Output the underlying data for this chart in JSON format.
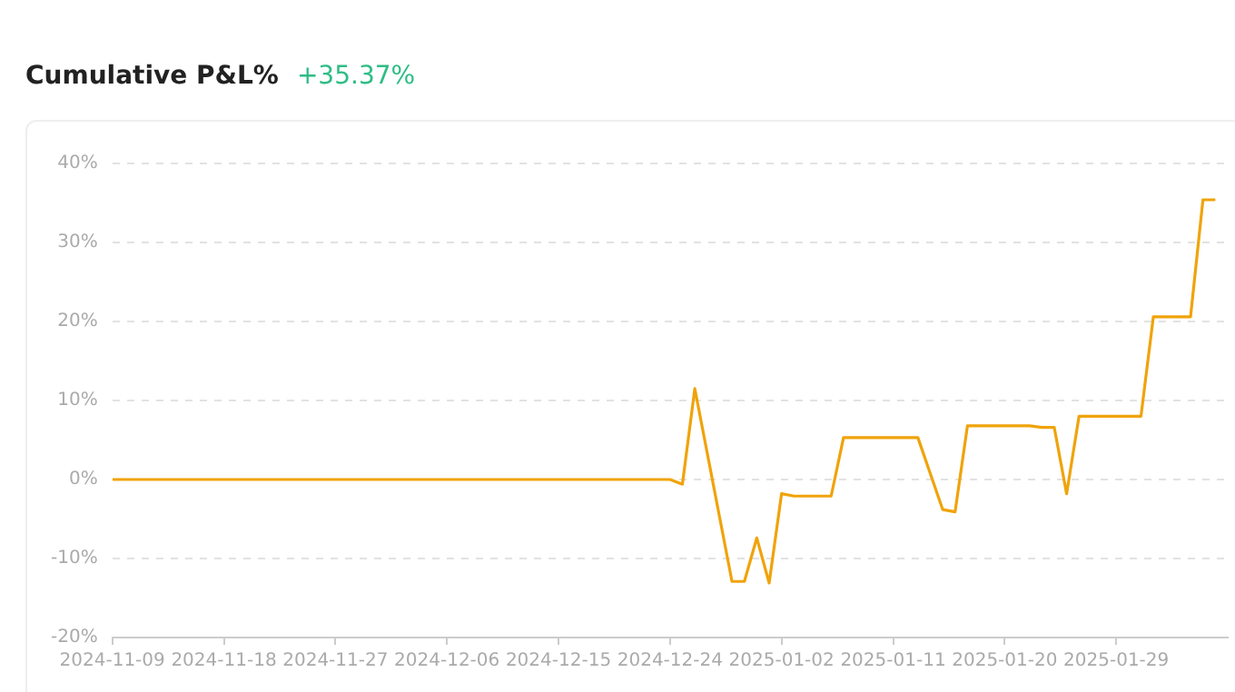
{
  "chart_data": {
    "type": "line",
    "title": "Cumulative P&L%",
    "subtitle": "+35.37%",
    "x": [
      "2024-11-09",
      "2024-12-24",
      "2024-12-25",
      "2024-12-26",
      "2024-12-29",
      "2024-12-30",
      "2024-12-31",
      "2025-01-01",
      "2025-01-02",
      "2025-01-03",
      "2025-01-06",
      "2025-01-07",
      "2025-01-13",
      "2025-01-15",
      "2025-01-16",
      "2025-01-17",
      "2025-01-22",
      "2025-01-23",
      "2025-01-24",
      "2025-01-25",
      "2025-01-26",
      "2025-01-31",
      "2025-02-01",
      "2025-02-04",
      "2025-02-05",
      "2025-02-06"
    ],
    "series": [
      {
        "color": "#f0a30a",
        "values": [
          0,
          0,
          -0.6,
          11.5,
          -12.9,
          -12.9,
          -7.4,
          -13.1,
          -1.8,
          -2.1,
          -2.1,
          5.3,
          5.3,
          -3.8,
          -4.1,
          6.8,
          6.8,
          6.6,
          6.6,
          -1.8,
          8.0,
          8.0,
          20.6,
          20.6,
          35.4,
          35.4
        ]
      }
    ],
    "xlim": [
      "2024-11-09",
      "2025-02-07"
    ],
    "xticks": [
      "2024-11-09",
      "2024-11-18",
      "2024-11-27",
      "2024-12-06",
      "2024-12-15",
      "2024-12-24",
      "2025-01-02",
      "2025-01-11",
      "2025-01-20",
      "2025-01-29"
    ],
    "ylim": [
      -20,
      40
    ],
    "yticks": [
      {
        "value": -20,
        "label": "-20%"
      },
      {
        "value": -10,
        "label": "-10%"
      },
      {
        "value": 0,
        "label": "0%"
      },
      {
        "value": 10,
        "label": "10%"
      },
      {
        "value": 20,
        "label": "20%"
      },
      {
        "value": 30,
        "label": "30%"
      },
      {
        "value": 40,
        "label": "40%"
      }
    ],
    "grid": "y",
    "legend": false,
    "marker": "none",
    "line_style": "solid"
  }
}
